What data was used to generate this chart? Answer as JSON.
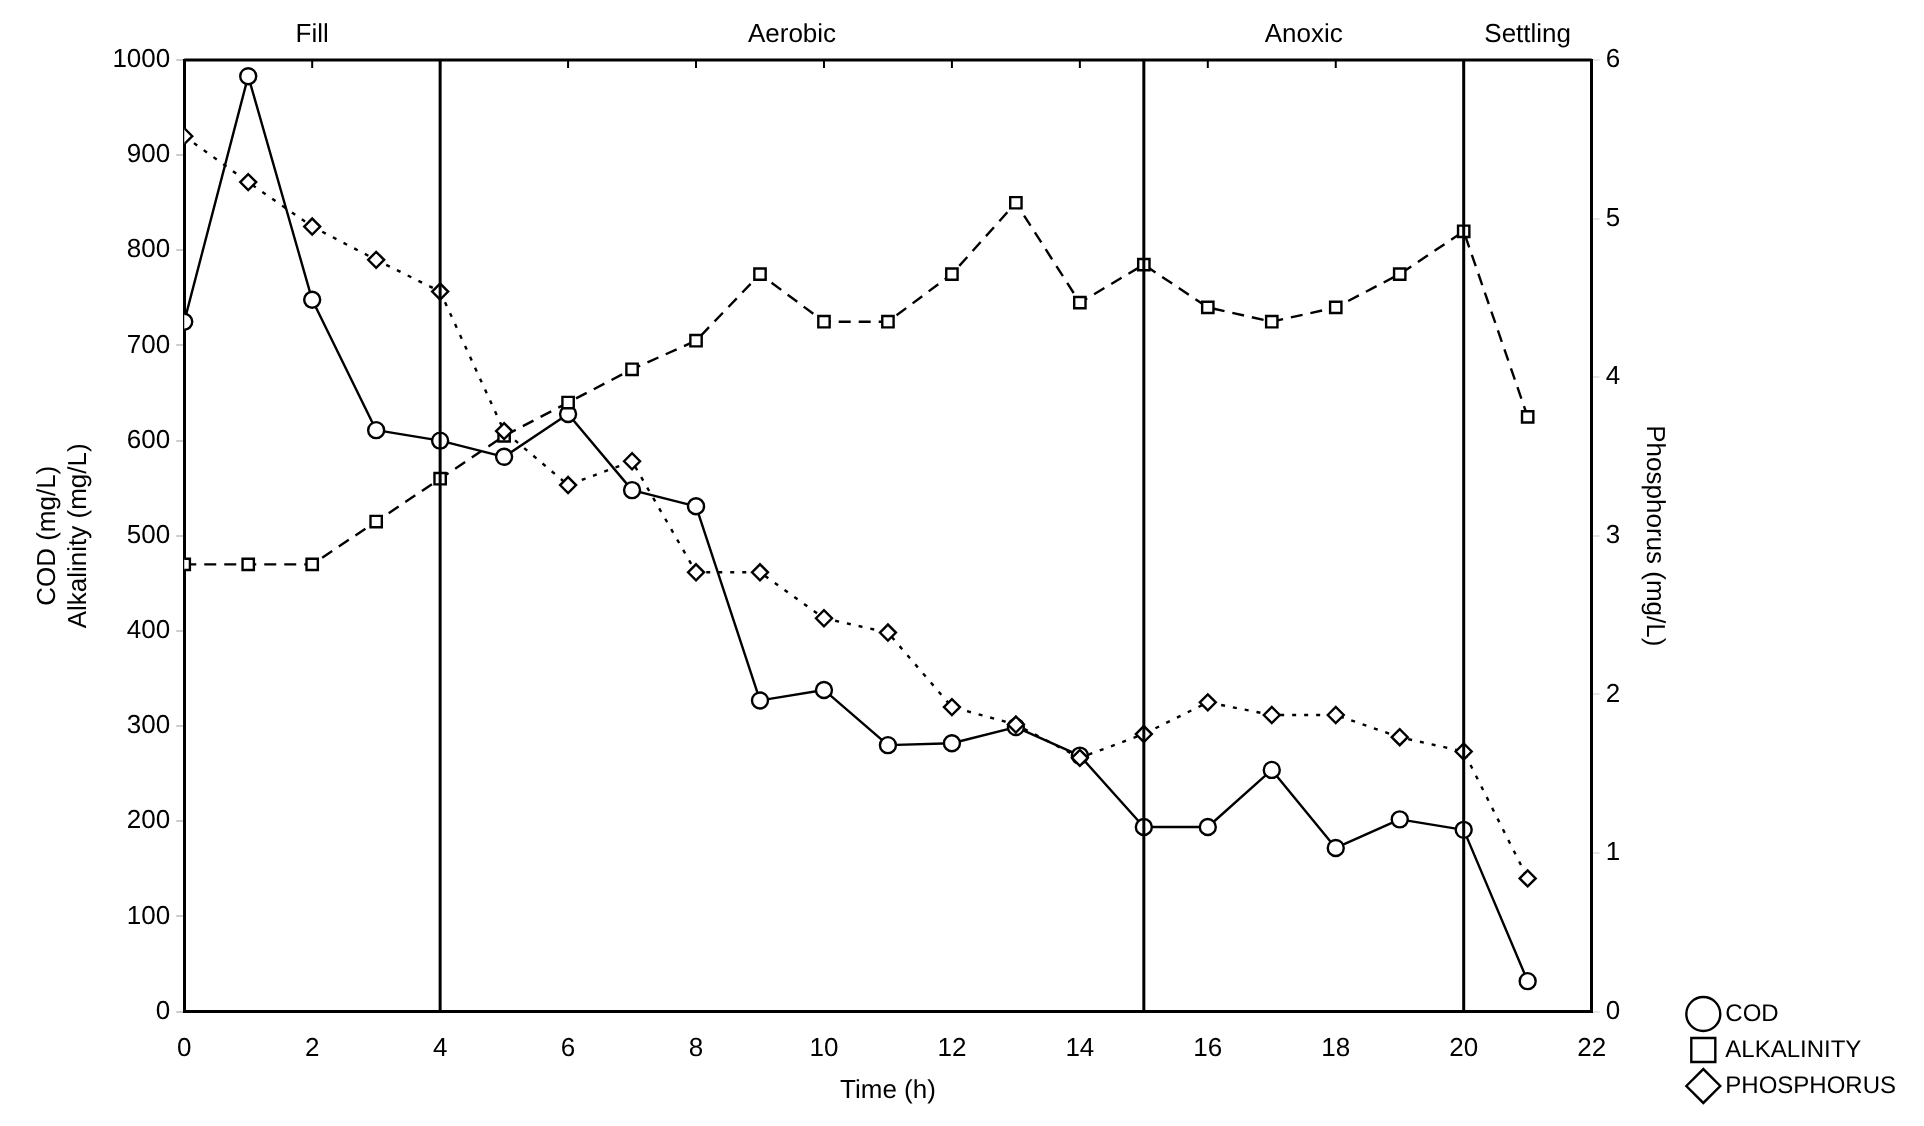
{
  "chart_data": {
    "type": "line",
    "xlabel": "Time (h)",
    "ylabel": "COD (mg/L)\nAlkalinity (mg/L)",
    "y2label": "Phosphorus (mg/L)",
    "x": [
      0,
      1,
      2,
      3,
      4,
      5,
      6,
      7,
      8,
      9,
      10,
      11,
      12,
      13,
      14,
      15,
      16,
      17,
      18,
      19,
      20,
      21
    ],
    "series": [
      {
        "name": "COD",
        "color": "#000000",
        "marker": "circle",
        "line_style": "solid",
        "values": [
          725,
          983,
          748,
          611,
          600,
          583,
          628,
          548,
          531,
          327,
          338,
          280,
          282,
          299,
          269,
          194,
          194,
          254,
          172,
          202,
          191,
          32
        ]
      },
      {
        "name": "ALKALINITY",
        "color": "#000000",
        "marker": "square",
        "line_style": "dashed",
        "values": [
          470,
          470,
          470,
          515,
          560,
          605,
          640,
          675,
          705,
          775,
          725,
          725,
          775,
          850,
          745,
          785,
          740,
          725,
          740,
          775,
          820,
          625
        ]
      },
      {
        "name": "PHOSPHORUS",
        "color": "#000000",
        "marker": "diamond",
        "line_style": "dotted",
        "axis": "y2",
        "values": [
          5.52,
          5.23,
          4.95,
          4.74,
          4.54,
          3.66,
          3.32,
          3.47,
          2.77,
          2.77,
          2.48,
          2.39,
          1.92,
          1.81,
          1.6,
          1.75,
          1.95,
          1.87,
          1.87,
          1.73,
          1.64,
          0.84
        ]
      }
    ],
    "xlim": [
      0,
      22
    ],
    "xticks": [
      0,
      2,
      4,
      6,
      8,
      10,
      12,
      14,
      16,
      18,
      20,
      22
    ],
    "ylim": [
      0,
      1000
    ],
    "yticks": [
      0,
      100,
      200,
      300,
      400,
      500,
      600,
      700,
      800,
      900,
      1000
    ],
    "y2lim": [
      0,
      6
    ],
    "y2ticks": [
      0,
      1,
      2,
      3,
      4,
      5,
      6
    ],
    "ref_lines": [
      {
        "axis": "x",
        "value": 4,
        "color": "#000000"
      },
      {
        "axis": "x",
        "value": 15,
        "color": "#000000"
      },
      {
        "axis": "x",
        "value": 20,
        "color": "#000000"
      }
    ],
    "annotations": [
      "Fill",
      "Aerobic",
      "Anoxic",
      "Settling"
    ],
    "grid": false,
    "legend": "bottom right"
  }
}
